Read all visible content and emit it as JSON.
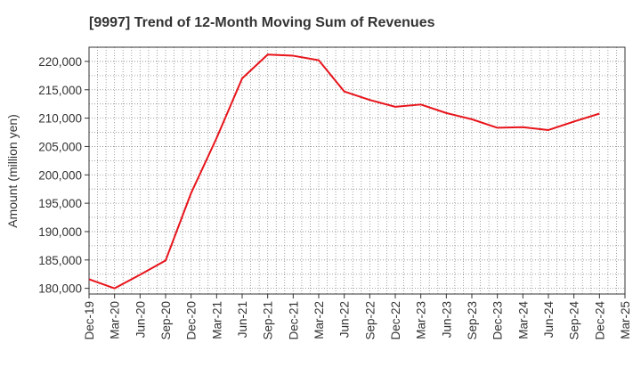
{
  "chart_data": {
    "type": "line",
    "title": "[9997]  Trend of 12-Month Moving Sum of Revenues",
    "xlabel": "",
    "ylabel": "Amount (million yen)",
    "ylim": [
      179000,
      222500
    ],
    "yticks": [
      180000,
      185000,
      190000,
      195000,
      200000,
      205000,
      210000,
      215000,
      220000
    ],
    "ytick_labels": [
      "180,000",
      "185,000",
      "190,000",
      "195,000",
      "200,000",
      "205,000",
      "210,000",
      "215,000",
      "220,000"
    ],
    "categories": [
      "Dec-19",
      "Mar-20",
      "Jun-20",
      "Sep-20",
      "Dec-20",
      "Mar-21",
      "Jun-21",
      "Sep-21",
      "Dec-21",
      "Mar-22",
      "Jun-22",
      "Sep-22",
      "Dec-22",
      "Mar-23",
      "Jun-23",
      "Sep-23",
      "Dec-23",
      "Mar-24",
      "Jun-24",
      "Sep-24",
      "Dec-24",
      "Mar-25"
    ],
    "grid": true,
    "legend": "none",
    "series": [
      {
        "color": "#e8141b",
        "values": [
          181600,
          180000,
          182400,
          184900,
          196800,
          206500,
          217000,
          221200,
          221000,
          220200,
          214700,
          213200,
          212000,
          212400,
          210900,
          209800,
          208300,
          208400,
          207900,
          209400,
          210800,
          null
        ]
      }
    ]
  }
}
